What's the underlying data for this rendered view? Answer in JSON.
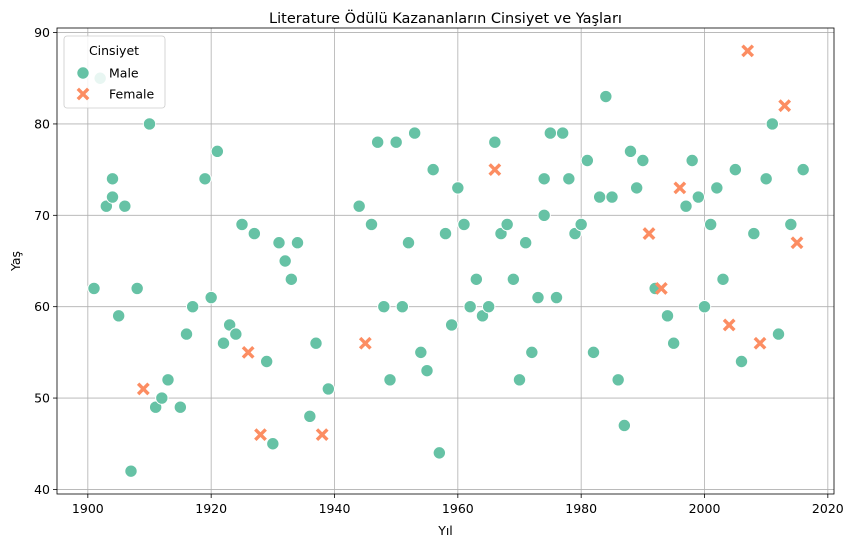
{
  "chart_data": {
    "type": "scatter",
    "title": "Literature Ödülü Kazananların Cinsiyet ve Yaşları",
    "xlabel": "Yıl",
    "ylabel": "Yaş",
    "xlim": [
      1895,
      2021
    ],
    "ylim": [
      39.5,
      90.5
    ],
    "xticks": [
      1900,
      1920,
      1940,
      1960,
      1980,
      2000,
      2020
    ],
    "yticks": [
      40,
      50,
      60,
      70,
      80,
      90
    ],
    "grid": true,
    "legend": {
      "title": "Cinsiyet",
      "placement": "top-left"
    },
    "series": [
      {
        "name": "Male",
        "marker": "circle",
        "color": "#66c2a5",
        "points": [
          [
            1901,
            62
          ],
          [
            1902,
            85
          ],
          [
            1903,
            71
          ],
          [
            1904,
            74
          ],
          [
            1904,
            72
          ],
          [
            1905,
            59
          ],
          [
            1906,
            71
          ],
          [
            1907,
            42
          ],
          [
            1908,
            62
          ],
          [
            1910,
            80
          ],
          [
            1911,
            49
          ],
          [
            1912,
            50
          ],
          [
            1913,
            52
          ],
          [
            1915,
            49
          ],
          [
            1916,
            57
          ],
          [
            1917,
            60
          ],
          [
            1919,
            74
          ],
          [
            1920,
            61
          ],
          [
            1921,
            77
          ],
          [
            1922,
            56
          ],
          [
            1923,
            58
          ],
          [
            1924,
            57
          ],
          [
            1925,
            69
          ],
          [
            1927,
            68
          ],
          [
            1929,
            54
          ],
          [
            1930,
            45
          ],
          [
            1931,
            67
          ],
          [
            1932,
            65
          ],
          [
            1933,
            63
          ],
          [
            1934,
            67
          ],
          [
            1936,
            48
          ],
          [
            1937,
            56
          ],
          [
            1939,
            51
          ],
          [
            1944,
            71
          ],
          [
            1946,
            69
          ],
          [
            1947,
            78
          ],
          [
            1948,
            60
          ],
          [
            1949,
            52
          ],
          [
            1950,
            78
          ],
          [
            1951,
            60
          ],
          [
            1952,
            67
          ],
          [
            1953,
            79
          ],
          [
            1954,
            55
          ],
          [
            1955,
            53
          ],
          [
            1956,
            75
          ],
          [
            1957,
            44
          ],
          [
            1958,
            68
          ],
          [
            1959,
            58
          ],
          [
            1960,
            73
          ],
          [
            1961,
            69
          ],
          [
            1962,
            60
          ],
          [
            1963,
            63
          ],
          [
            1964,
            59
          ],
          [
            1965,
            60
          ],
          [
            1966,
            78
          ],
          [
            1967,
            68
          ],
          [
            1968,
            69
          ],
          [
            1969,
            63
          ],
          [
            1970,
            52
          ],
          [
            1971,
            67
          ],
          [
            1972,
            55
          ],
          [
            1973,
            61
          ],
          [
            1974,
            74
          ],
          [
            1974,
            70
          ],
          [
            1975,
            79
          ],
          [
            1976,
            61
          ],
          [
            1977,
            79
          ],
          [
            1978,
            74
          ],
          [
            1979,
            68
          ],
          [
            1980,
            69
          ],
          [
            1981,
            76
          ],
          [
            1982,
            55
          ],
          [
            1983,
            72
          ],
          [
            1984,
            83
          ],
          [
            1985,
            72
          ],
          [
            1986,
            52
          ],
          [
            1987,
            47
          ],
          [
            1988,
            77
          ],
          [
            1989,
            73
          ],
          [
            1990,
            76
          ],
          [
            1992,
            62
          ],
          [
            1994,
            59
          ],
          [
            1995,
            56
          ],
          [
            1997,
            71
          ],
          [
            1998,
            76
          ],
          [
            1999,
            72
          ],
          [
            2000,
            60
          ],
          [
            2001,
            69
          ],
          [
            2002,
            73
          ],
          [
            2003,
            63
          ],
          [
            2005,
            75
          ],
          [
            2006,
            54
          ],
          [
            2008,
            68
          ],
          [
            2010,
            74
          ],
          [
            2011,
            80
          ],
          [
            2012,
            57
          ],
          [
            2014,
            69
          ],
          [
            2016,
            75
          ]
        ]
      },
      {
        "name": "Female",
        "marker": "x",
        "color": "#fc8d62",
        "points": [
          [
            1909,
            51
          ],
          [
            1926,
            55
          ],
          [
            1928,
            46
          ],
          [
            1938,
            46
          ],
          [
            1945,
            56
          ],
          [
            1966,
            75
          ],
          [
            1991,
            68
          ],
          [
            1993,
            62
          ],
          [
            1996,
            73
          ],
          [
            2004,
            58
          ],
          [
            2007,
            88
          ],
          [
            2009,
            56
          ],
          [
            2013,
            82
          ],
          [
            2015,
            67
          ]
        ]
      }
    ]
  }
}
